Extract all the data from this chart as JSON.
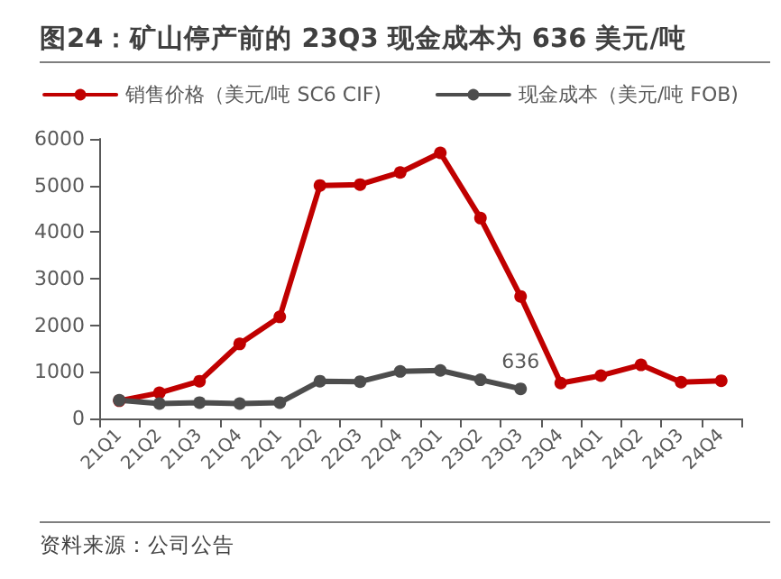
{
  "chart_data": {
    "type": "line",
    "title": "图24：矿山停产前的 23Q3 现金成本为 636 美元/吨",
    "annotations": [
      "资料来源：公司公告"
    ],
    "categories": [
      "21Q1",
      "21Q2",
      "21Q3",
      "21Q4",
      "22Q1",
      "22Q2",
      "22Q3",
      "22Q4",
      "23Q1",
      "23Q2",
      "23Q3",
      "23Q4",
      "24Q1",
      "24Q2",
      "24Q3",
      "24Q4"
    ],
    "series": [
      {
        "name": "销售价格（美元/吨 SC6 CIF)",
        "color": "#c00000",
        "values": [
          380,
          550,
          800,
          1600,
          2180,
          5000,
          5020,
          5280,
          5700,
          4300,
          2620,
          760,
          920,
          1150,
          780,
          810
        ]
      },
      {
        "name": "现金成本（美元/吨 FOB)",
        "color": "#4d4d4d",
        "values": [
          390,
          320,
          340,
          320,
          340,
          800,
          790,
          1010,
          1030,
          830,
          636,
          null,
          null,
          null,
          null,
          null
        ],
        "value_labels": [
          null,
          null,
          null,
          null,
          null,
          null,
          null,
          null,
          null,
          null,
          "636",
          null,
          null,
          null,
          null,
          null
        ]
      }
    ],
    "ylim": [
      0,
      6000
    ],
    "yticks": [
      0,
      1000,
      2000,
      3000,
      4000,
      5000,
      6000
    ],
    "grid": false,
    "legend": "top",
    "marker": "circle",
    "line_style": "solid"
  }
}
